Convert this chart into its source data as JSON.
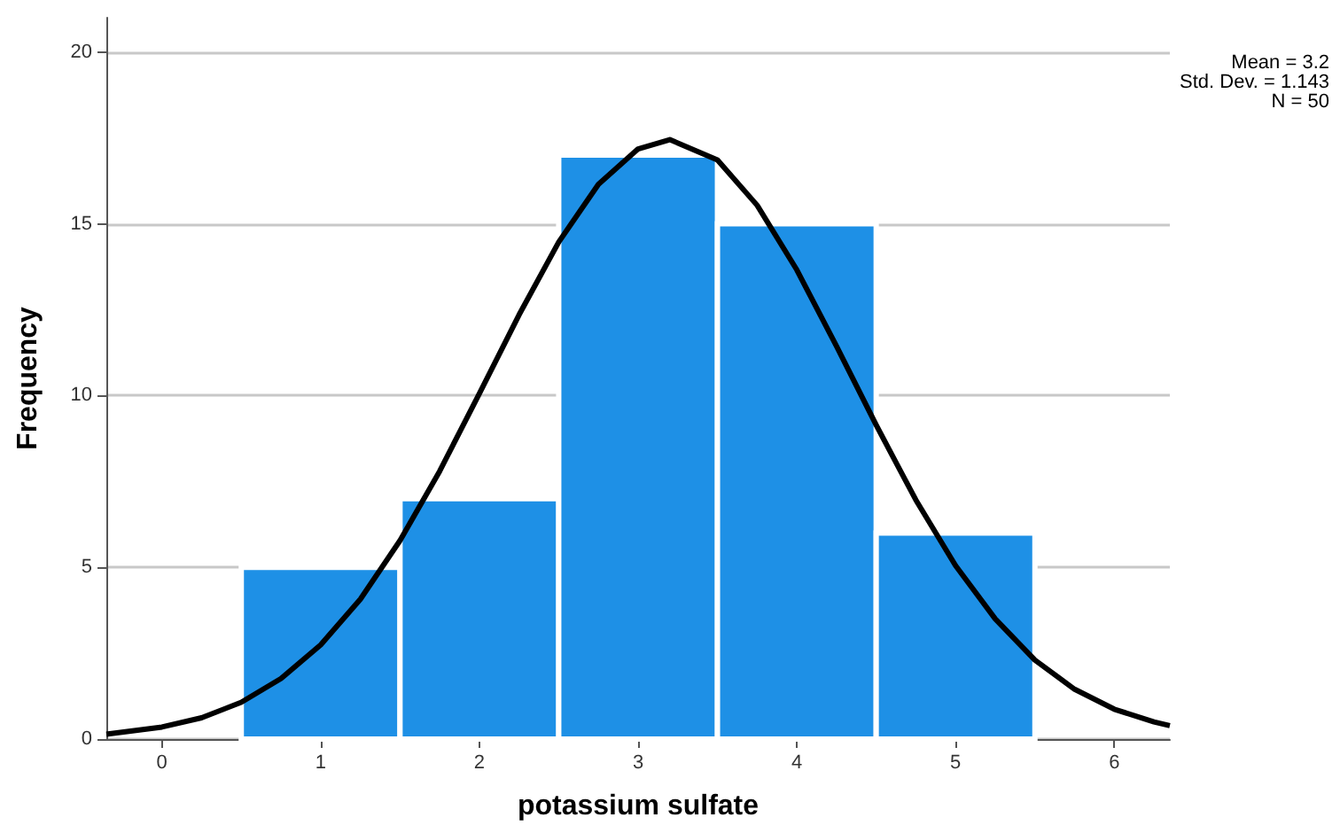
{
  "chart_data": {
    "type": "histogram",
    "xlabel": "potassium sulfate",
    "ylabel": "Frequency",
    "bins": [
      0.5,
      1.5,
      2.5,
      3.5,
      4.5,
      5.5
    ],
    "values": [
      5,
      7,
      17,
      15,
      6
    ],
    "color": "#1e90e6",
    "series": [
      {
        "type": "line",
        "color": "#000000",
        "x": [
          -0.35,
          0,
          0.25,
          0.5,
          0.75,
          1,
          1.25,
          1.5,
          1.75,
          2,
          2.25,
          2.5,
          2.75,
          3,
          3.2,
          3.5,
          3.75,
          4,
          4.25,
          4.5,
          4.75,
          5,
          5.25,
          5.5,
          5.75,
          6,
          6.25,
          6.35
        ],
        "values": [
          0.14,
          0.35,
          0.62,
          1.07,
          1.76,
          2.74,
          4.07,
          5.78,
          7.8,
          10.06,
          12.35,
          14.47,
          16.15,
          17.18,
          17.45,
          16.86,
          15.54,
          13.66,
          11.44,
          9.14,
          6.96,
          5.05,
          3.5,
          2.3,
          1.45,
          0.87,
          0.5,
          0.39
        ]
      }
    ],
    "xlim": [
      -0.35,
      6.35
    ],
    "ylim": [
      0,
      21
    ],
    "xticks": [
      0,
      1,
      2,
      3,
      4,
      5,
      6
    ],
    "yticks": [
      0,
      5,
      10,
      15,
      20
    ],
    "grid": "y",
    "annotations": [
      "Mean = 3.2",
      "Std. Dev. = 1.143",
      "N = 50"
    ]
  }
}
